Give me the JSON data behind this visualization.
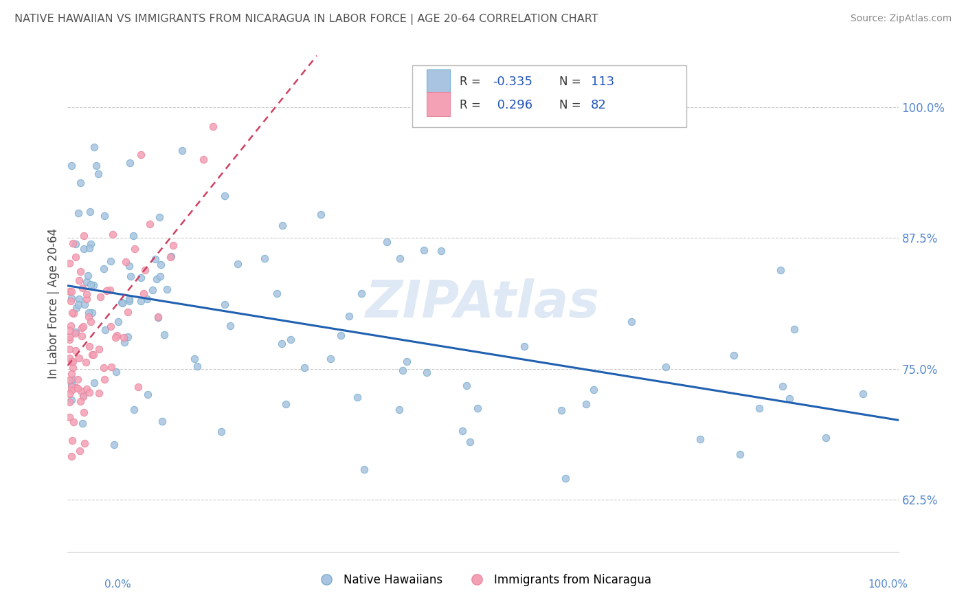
{
  "title": "NATIVE HAWAIIAN VS IMMIGRANTS FROM NICARAGUA IN LABOR FORCE | AGE 20-64 CORRELATION CHART",
  "source": "Source: ZipAtlas.com",
  "ylabel": "In Labor Force | Age 20-64",
  "ylabel_ticks": [
    "62.5%",
    "75.0%",
    "87.5%",
    "100.0%"
  ],
  "ylabel_values": [
    0.625,
    0.75,
    0.875,
    1.0
  ],
  "xlim": [
    0.0,
    1.0
  ],
  "ylim": [
    0.575,
    1.05
  ],
  "blue_r": "-0.335",
  "blue_n": "113",
  "pink_r": "0.296",
  "pink_n": "82",
  "blue_color": "#a8c4e0",
  "pink_color": "#f4a0b5",
  "blue_edge_color": "#7aafd0",
  "pink_edge_color": "#e888a0",
  "blue_line_color": "#2060b0",
  "pink_line_color": "#d04060",
  "legend_label_blue": "Native Hawaiians",
  "legend_label_pink": "Immigrants from Nicaragua",
  "grid_color": "#cccccc",
  "bg_color": "#ffffff",
  "watermark_color": "#c5d8ee",
  "tick_color": "#5588cc",
  "title_color": "#555555",
  "source_color": "#888888"
}
